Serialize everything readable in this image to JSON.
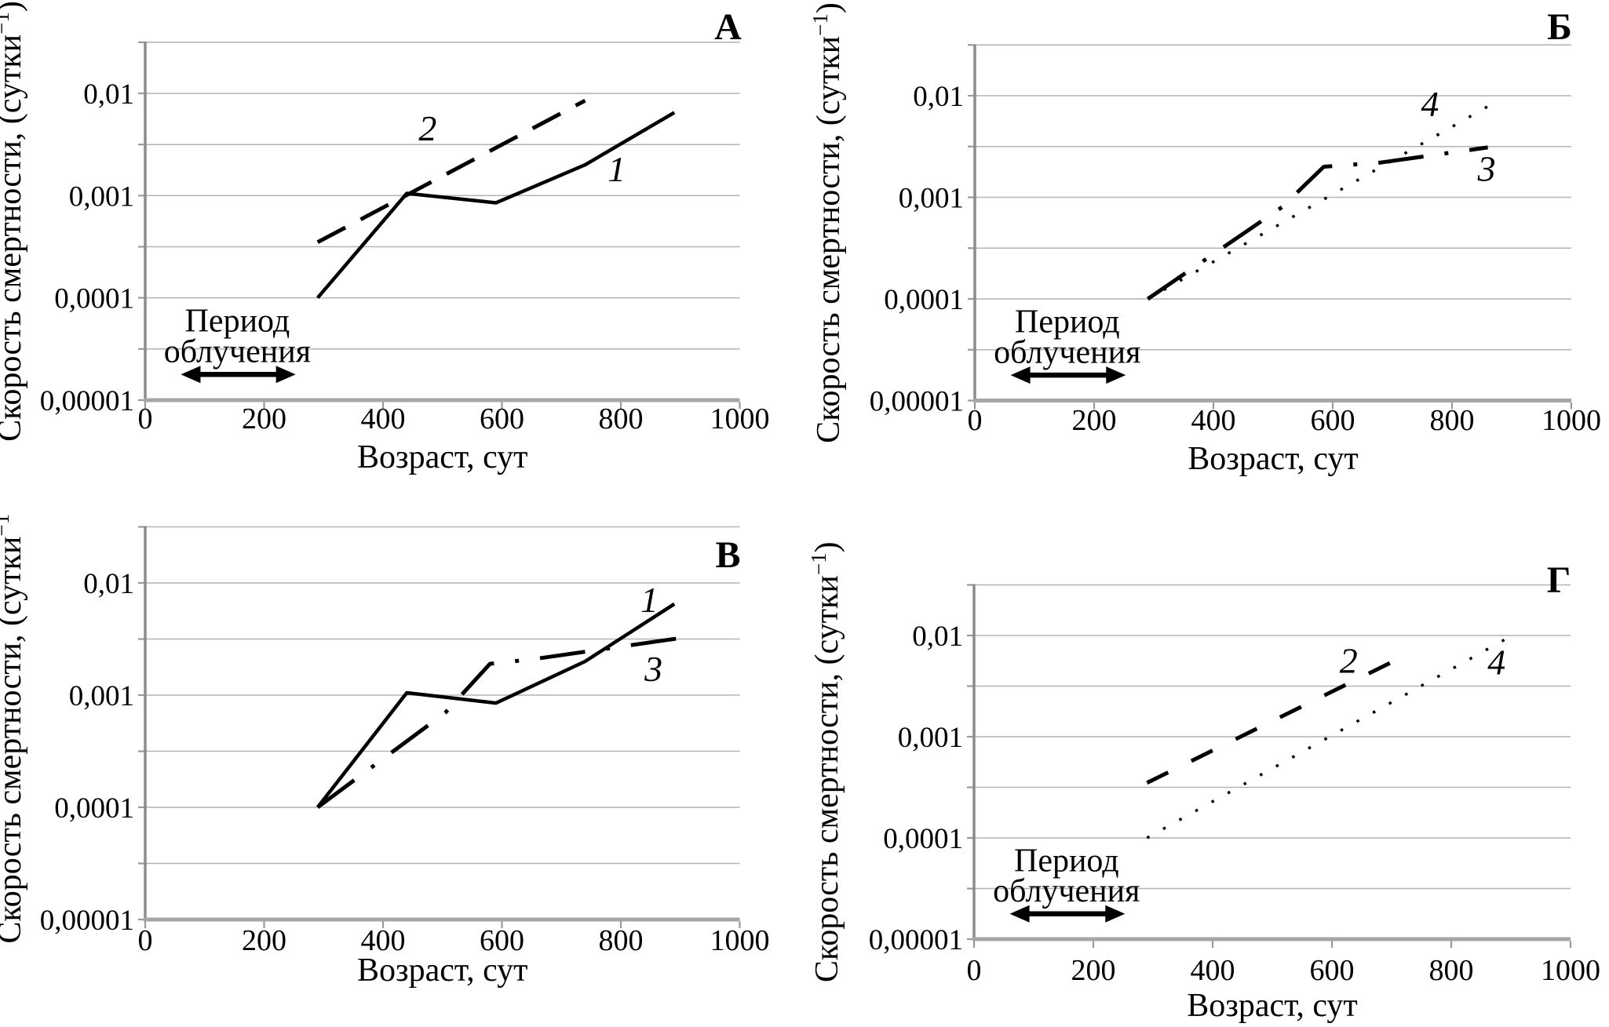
{
  "figure": {
    "background": "#ffffff",
    "text_color": "#000000",
    "grid_color": "#b3b3b3",
    "y_axis_color": "#8c8c8c",
    "x_axis_color": "#a6a6a6",
    "curve_color": "#000000"
  },
  "axis_text": {
    "x_title": "Возраст, сут",
    "y_title_main": "Скорость смертности, (сутки",
    "y_title_sup": "−1",
    "y_title_close": ")"
  },
  "chart_data": [
    {
      "id": "A",
      "panel_letter": "А",
      "type": "line",
      "xlabel": "Возраст, сут",
      "ylabel": "Скорость смертности, (сутки−1)",
      "xlim": [
        0,
        1000
      ],
      "ylim": [
        1e-05,
        0.0316
      ],
      "y_scale": "log",
      "grid": "horizontal-half-decade",
      "x_ticks": [
        "0",
        "200",
        "400",
        "600",
        "800",
        "1000"
      ],
      "x_tick_values": [
        0,
        200,
        400,
        600,
        800,
        1000
      ],
      "y_tick_labels": [
        {
          "value": 0.01,
          "label": "0,01"
        },
        {
          "value": 0.001,
          "label": "0,001"
        },
        {
          "value": 0.0001,
          "label": "0,0001"
        },
        {
          "value": 1e-05,
          "label": "0,00001"
        }
      ],
      "grid_levels": [
        0.0316,
        0.01,
        0.00316,
        0.001,
        0.000316,
        0.0001,
        3.16e-05
      ],
      "series": [
        {
          "name": "1",
          "style": "solid",
          "points": [
            [
              290,
              0.0001
            ],
            [
              440,
              0.00105
            ],
            [
              590,
              0.00085
            ],
            [
              740,
              0.002
            ],
            [
              890,
              0.0065
            ]
          ]
        },
        {
          "name": "2",
          "style": "dashed",
          "points": [
            [
              290,
              0.00035
            ],
            [
              740,
              0.0085
            ]
          ]
        }
      ],
      "series_labels": [
        {
          "text": "2",
          "x": 475,
          "v": 0.0045
        },
        {
          "text": "1",
          "x": 793,
          "v": 0.0018
        }
      ],
      "annotation": {
        "line1": "Период",
        "line2": "облучения",
        "center_x": 155,
        "arrow_x": [
          60,
          253
        ],
        "text1_v": 4.7e-05,
        "text2_v": 2.35e-05,
        "arrow_v": 1.78e-05
      }
    },
    {
      "id": "B",
      "panel_letter": "Б",
      "type": "line",
      "xlabel": "Возраст, сут",
      "ylabel": "Скорость смертности, (сутки−1)",
      "xlim": [
        0,
        1000
      ],
      "ylim": [
        1e-05,
        0.0316
      ],
      "y_scale": "log",
      "grid": "horizontal-half-decade",
      "x_ticks": [
        "0",
        "200",
        "400",
        "600",
        "800",
        "1000"
      ],
      "x_tick_values": [
        0,
        200,
        400,
        600,
        800,
        1000
      ],
      "y_tick_labels": [
        {
          "value": 0.01,
          "label": "0,01"
        },
        {
          "value": 0.001,
          "label": "0,001"
        },
        {
          "value": 0.0001,
          "label": "0,0001"
        },
        {
          "value": 1e-05,
          "label": "0,00001"
        }
      ],
      "grid_levels": [
        0.0316,
        0.01,
        0.00316,
        0.001,
        0.000316,
        0.0001,
        3.16e-05
      ],
      "series": [
        {
          "name": "3",
          "style": "dash-dot",
          "points": [
            [
              290,
              0.0001
            ],
            [
              515,
              0.0008
            ],
            [
              585,
              0.002
            ],
            [
              680,
              0.0022
            ],
            [
              860,
              0.0031
            ]
          ]
        },
        {
          "name": "4",
          "style": "dotted",
          "points": [
            [
              290,
              0.0001
            ],
            [
              875,
              0.0088
            ]
          ]
        }
      ],
      "series_labels": [
        {
          "text": "4",
          "x": 763,
          "v": 0.0082
        },
        {
          "text": "3",
          "x": 858,
          "v": 0.0019
        }
      ],
      "annotation": {
        "line1": "Период",
        "line2": "облучения",
        "center_x": 155,
        "arrow_x": [
          60,
          253
        ],
        "text1_v": 4.7e-05,
        "text2_v": 2.35e-05,
        "arrow_v": 1.78e-05
      }
    },
    {
      "id": "V",
      "panel_letter": "В",
      "type": "line",
      "xlabel": "Возраст, сут",
      "ylabel": "Скорость смертности, (сутки−1)",
      "xlim": [
        0,
        1000
      ],
      "ylim": [
        1e-05,
        0.0316
      ],
      "y_scale": "log",
      "grid": "horizontal-half-decade",
      "x_ticks": [
        "0",
        "200",
        "400",
        "600",
        "800",
        "1000"
      ],
      "x_tick_values": [
        0,
        200,
        400,
        600,
        800,
        1000
      ],
      "y_tick_labels": [
        {
          "value": 0.01,
          "label": "0,01"
        },
        {
          "value": 0.001,
          "label": "0,001"
        },
        {
          "value": 0.0001,
          "label": "0,0001"
        },
        {
          "value": 1e-05,
          "label": "0,00001"
        }
      ],
      "grid_levels": [
        0.0316,
        0.01,
        0.00316,
        0.001,
        0.000316,
        0.0001,
        3.16e-05
      ],
      "series": [
        {
          "name": "1",
          "style": "solid",
          "points": [
            [
              290,
              0.0001
            ],
            [
              440,
              0.00105
            ],
            [
              590,
              0.00085
            ],
            [
              740,
              0.002
            ],
            [
              890,
              0.0065
            ]
          ]
        },
        {
          "name": "3",
          "style": "dash-dot",
          "points": [
            [
              290,
              0.0001
            ],
            [
              505,
              0.0007
            ],
            [
              580,
              0.0019
            ],
            [
              655,
              0.0021
            ],
            [
              895,
              0.0032
            ]
          ]
        }
      ],
      "series_labels": [
        {
          "text": "1",
          "x": 848,
          "v": 0.007
        },
        {
          "text": "3",
          "x": 855,
          "v": 0.0017
        }
      ],
      "annotation": null
    },
    {
      "id": "G",
      "panel_letter": "Г",
      "type": "line",
      "xlabel": "Возраст, сут",
      "ylabel": "Скорость смертности, (сутки−1)",
      "xlim": [
        0,
        1000
      ],
      "ylim": [
        1e-05,
        0.0316
      ],
      "y_scale": "log",
      "grid": "horizontal-half-decade",
      "x_ticks": [
        "0",
        "200",
        "400",
        "600",
        "800",
        "1000"
      ],
      "x_tick_values": [
        0,
        200,
        400,
        600,
        800,
        1000
      ],
      "y_tick_labels": [
        {
          "value": 0.01,
          "label": "0,01"
        },
        {
          "value": 0.001,
          "label": "0,001"
        },
        {
          "value": 0.0001,
          "label": "0,0001"
        },
        {
          "value": 1e-05,
          "label": "0,00001"
        }
      ],
      "grid_levels": [
        0.0316,
        0.01,
        0.00316,
        0.001,
        0.000316,
        0.0001,
        3.16e-05
      ],
      "series": [
        {
          "name": "2",
          "style": "dashed-short",
          "points": [
            [
              290,
              0.00035
            ],
            [
              712,
              0.0059
            ]
          ]
        },
        {
          "name": "4",
          "style": "dotted",
          "points": [
            [
              290,
              0.0001
            ],
            [
              898,
              0.0097
            ]
          ]
        }
      ],
      "series_labels": [
        {
          "text": "2",
          "x": 628,
          "v": 0.0056
        },
        {
          "text": "4",
          "x": 876,
          "v": 0.0054
        }
      ],
      "annotation": {
        "line1": "Период",
        "line2": "облучения",
        "center_x": 155,
        "arrow_x": [
          60,
          253
        ],
        "text1_v": 4.7e-05,
        "text2_v": 2.35e-05,
        "arrow_v": 1.78e-05
      }
    }
  ]
}
